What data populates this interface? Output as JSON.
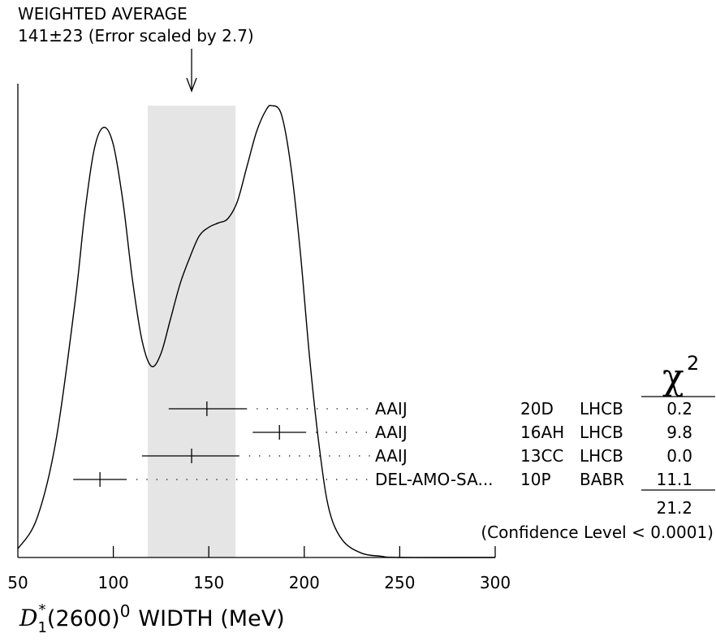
{
  "chart_data": {
    "type": "ideogram",
    "title_line1": "WEIGHTED AVERAGE",
    "title_line2": "141±23 (Error scaled by 2.7)",
    "average": {
      "value": 141,
      "band_low": 118,
      "band_high": 164
    },
    "xlim": [
      50,
      300
    ],
    "xticks": [
      50,
      100,
      150,
      200,
      250,
      300
    ],
    "xlabel": {
      "symbol": "D",
      "superscript": "*",
      "subscript": "1",
      "state": "(2600)",
      "charge": "0",
      "text": "WIDTH (MeV)"
    },
    "chi2_header": {
      "symbol": "χ",
      "exponent": "2"
    },
    "measurements": [
      {
        "author": "AAIJ",
        "ref": "20D",
        "experiment": "LHCB",
        "value": 149,
        "low": 129,
        "high": 170,
        "chi2": "0.2"
      },
      {
        "author": "AAIJ",
        "ref": "16AH",
        "experiment": "LHCB",
        "value": 187,
        "low": 173,
        "high": 201,
        "chi2": "9.8"
      },
      {
        "author": "AAIJ",
        "ref": "13CC",
        "experiment": "LHCB",
        "value": 141,
        "low": 115,
        "high": 166,
        "chi2": "0.0"
      },
      {
        "author": "DEL-AMO-SA...",
        "ref": "10P",
        "experiment": "BABR",
        "value": 93,
        "low": 79,
        "high": 107,
        "chi2": "11.1"
      }
    ],
    "chi2_total": "21.2",
    "confidence_level": "(Confidence Level < 0.0001)",
    "ideogram_curve": [
      [
        50,
        0.02
      ],
      [
        60,
        0.09
      ],
      [
        70,
        0.27
      ],
      [
        80,
        0.59
      ],
      [
        85,
        0.79
      ],
      [
        90,
        0.94
      ],
      [
        95,
        0.99
      ],
      [
        100,
        0.95
      ],
      [
        105,
        0.82
      ],
      [
        110,
        0.64
      ],
      [
        115,
        0.5
      ],
      [
        120,
        0.44
      ],
      [
        125,
        0.47
      ],
      [
        130,
        0.55
      ],
      [
        135,
        0.63
      ],
      [
        140,
        0.69
      ],
      [
        145,
        0.74
      ],
      [
        150,
        0.76
      ],
      [
        155,
        0.77
      ],
      [
        160,
        0.78
      ],
      [
        165,
        0.82
      ],
      [
        170,
        0.9
      ],
      [
        175,
        0.98
      ],
      [
        180,
        1.03
      ],
      [
        183,
        1.04
      ],
      [
        188,
        1.02
      ],
      [
        193,
        0.9
      ],
      [
        198,
        0.7
      ],
      [
        203,
        0.45
      ],
      [
        208,
        0.25
      ],
      [
        213,
        0.11
      ],
      [
        220,
        0.04
      ],
      [
        230,
        0.01
      ],
      [
        240,
        0.003
      ],
      [
        250,
        0.0
      ],
      [
        300,
        0.0
      ]
    ]
  }
}
